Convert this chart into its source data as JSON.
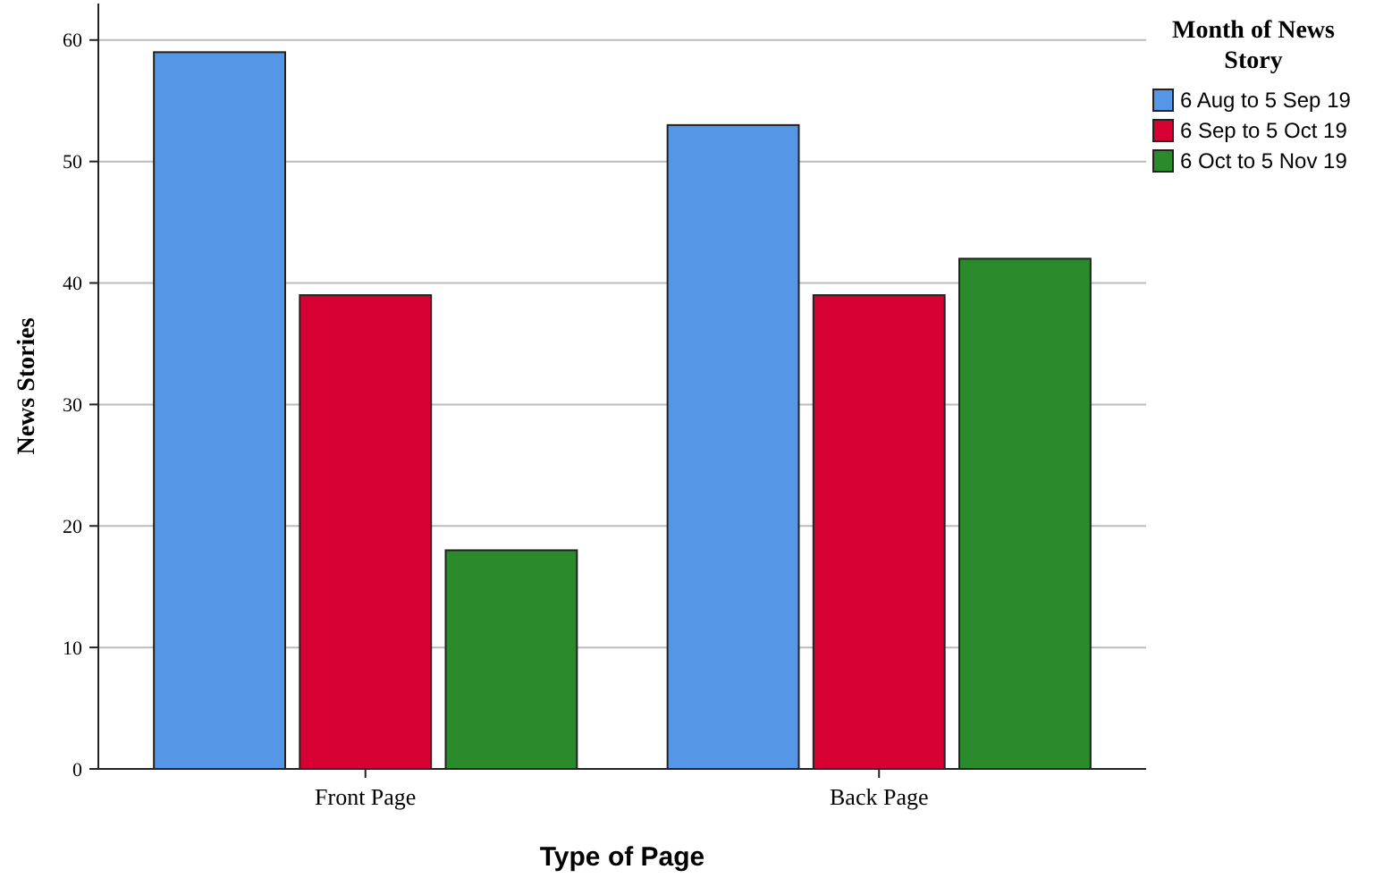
{
  "chart_data": {
    "type": "bar",
    "xlabel": "Type of Page",
    "ylabel": "News Stories",
    "legend_title": "Month of News Story",
    "categories": [
      "Front Page",
      "Back Page"
    ],
    "series": [
      {
        "name": "6 Aug to 5 Sep 19",
        "color": "#5596e6",
        "values": [
          59,
          53
        ]
      },
      {
        "name": "6 Sep to 5 Oct 19",
        "color": "#d60032",
        "values": [
          39,
          39
        ]
      },
      {
        "name": "6 Oct to 5 Nov 19",
        "color": "#2b8a2b",
        "values": [
          18,
          42
        ]
      }
    ],
    "ylim": [
      0,
      63
    ],
    "yticks": [
      0,
      10,
      20,
      30,
      40,
      50,
      60
    ],
    "grid": "y",
    "legend": "right"
  }
}
